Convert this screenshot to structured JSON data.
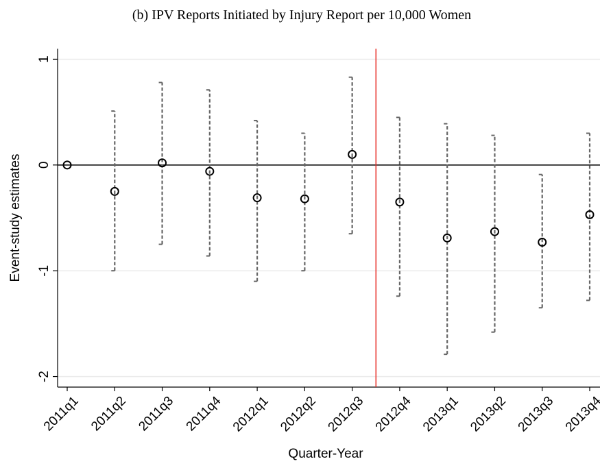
{
  "chart_data": {
    "type": "errorbar",
    "title": "(b) IPV Reports Initiated by Injury Report per 10,000 Women",
    "x_label": "Quarter-Year",
    "y_label": "Event-study estimates",
    "categories": [
      "2011q1",
      "2011q2",
      "2011q3",
      "2011q4",
      "2012q1",
      "2012q2",
      "2012q3",
      "2012q4",
      "2013q1",
      "2013q2",
      "2013q3",
      "2013q4"
    ],
    "values": [
      0,
      -0.25,
      0.02,
      -0.06,
      -0.31,
      -0.32,
      0.1,
      -0.35,
      -0.69,
      -0.63,
      -0.73,
      -0.47
    ],
    "ci_low": [
      null,
      -1.0,
      -0.75,
      -0.86,
      -1.1,
      -1.0,
      -0.65,
      -1.24,
      -1.79,
      -1.58,
      -1.35,
      -1.28
    ],
    "ci_high": [
      null,
      0.51,
      0.78,
      0.71,
      0.42,
      0.3,
      0.83,
      0.45,
      0.39,
      0.28,
      -0.09,
      0.3
    ],
    "color": "#000000",
    "ci_color": "#666666",
    "ylim": [
      -2.1,
      1.1
    ],
    "yticks": [
      1,
      0,
      -1,
      -2
    ],
    "grid": true,
    "hline": 0,
    "vline": 6.5,
    "vline_color": "#e8302a"
  }
}
